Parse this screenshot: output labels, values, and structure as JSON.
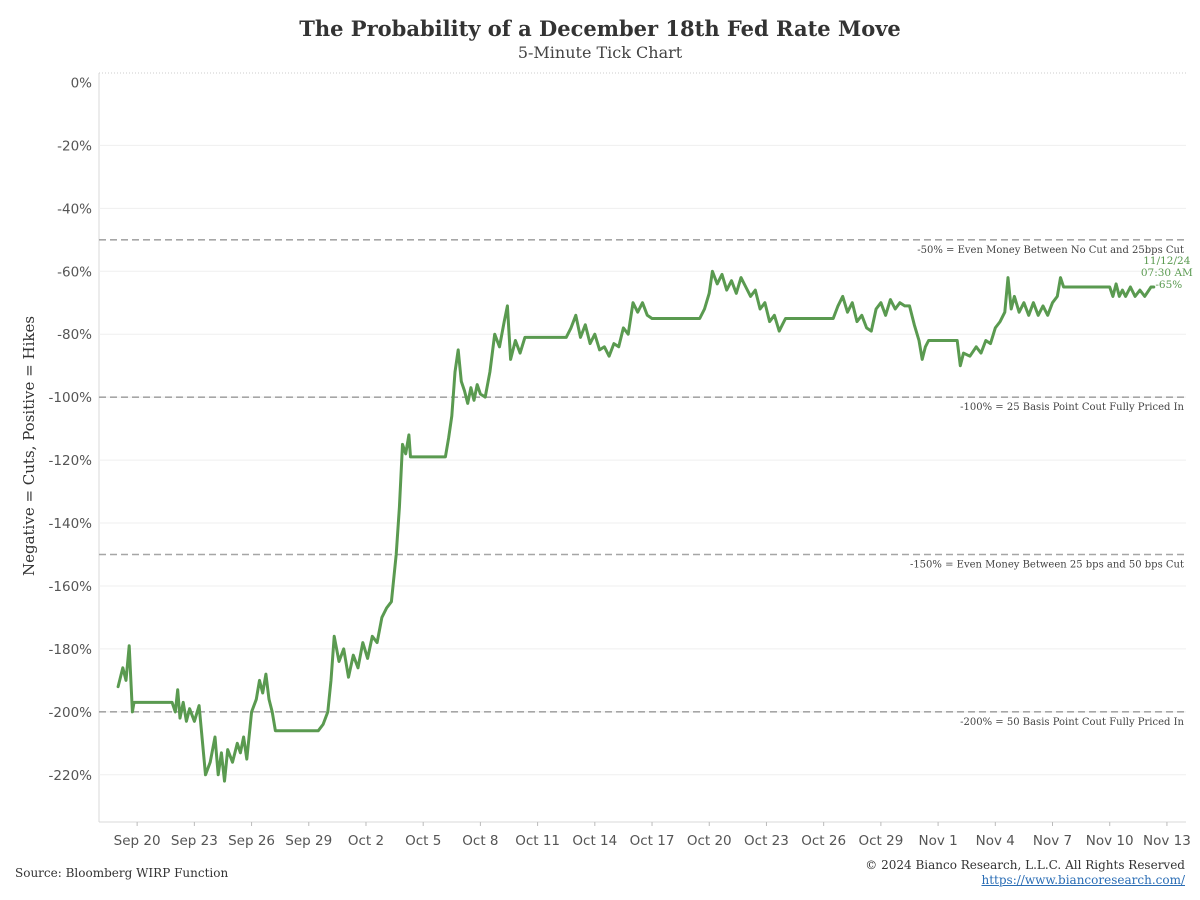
{
  "header": {
    "title": "The Probability of a December 18th Fed Rate Move",
    "subtitle": "5-Minute Tick Chart"
  },
  "footer": {
    "source": "Source: Bloomberg WIRP Function",
    "copyright": "© 2024 Bianco Research, L.L.C. All Rights Reserved",
    "url": "https://www.biancoresearch.com/"
  },
  "chart_data": {
    "type": "line",
    "ylabel": "Negative = Cuts, Positive = Hikes",
    "xlabel": "",
    "ylim": [
      -235,
      3
    ],
    "y_ticks": [
      0,
      -20,
      -40,
      -60,
      -80,
      -100,
      -120,
      -140,
      -160,
      -180,
      -200,
      -220
    ],
    "y_tick_format": "percent",
    "x_domain_days": [
      "2024-09-18",
      "2024-11-14"
    ],
    "x_ticks": [
      {
        "date": "2024-09-20",
        "label": "Sep 20"
      },
      {
        "date": "2024-09-23",
        "label": "Sep 23"
      },
      {
        "date": "2024-09-26",
        "label": "Sep 26"
      },
      {
        "date": "2024-09-29",
        "label": "Sep 29"
      },
      {
        "date": "2024-10-02",
        "label": "Oct 2"
      },
      {
        "date": "2024-10-05",
        "label": "Oct 5"
      },
      {
        "date": "2024-10-08",
        "label": "Oct 8"
      },
      {
        "date": "2024-10-11",
        "label": "Oct 11"
      },
      {
        "date": "2024-10-14",
        "label": "Oct 14"
      },
      {
        "date": "2024-10-17",
        "label": "Oct 17"
      },
      {
        "date": "2024-10-20",
        "label": "Oct 20"
      },
      {
        "date": "2024-10-23",
        "label": "Oct 23"
      },
      {
        "date": "2024-10-26",
        "label": "Oct 26"
      },
      {
        "date": "2024-10-29",
        "label": "Oct 29"
      },
      {
        "date": "2024-11-01",
        "label": "Nov 1"
      },
      {
        "date": "2024-11-04",
        "label": "Nov 4"
      },
      {
        "date": "2024-11-07",
        "label": "Nov 7"
      },
      {
        "date": "2024-11-10",
        "label": "Nov 10"
      },
      {
        "date": "2024-11-13",
        "label": "Nov 13"
      }
    ],
    "grid": true,
    "reference_lines": [
      {
        "y": -50,
        "label": "-50% = Even Money Between No Cut and 25bps Cut"
      },
      {
        "y": -100,
        "label": "-100% = 25 Basis Point Cout Fully Priced In"
      },
      {
        "y": -150,
        "label": "-150% = Even Money Between 25 bps and 50 bps Cut"
      },
      {
        "y": -200,
        "label": "-200% = 50 Basis Point Cout Fully Priced In"
      }
    ],
    "last_point": {
      "date_label": "11/12/24",
      "time_label": "07:30 AM",
      "value_label": "-65%",
      "value": -65
    },
    "line_color": "#5a9a50",
    "series": [
      {
        "points": [
          [
            "2024-09-19 00:00",
            -192
          ],
          [
            "2024-09-19 06:00",
            -186
          ],
          [
            "2024-09-19 10:00",
            -190
          ],
          [
            "2024-09-19 14:00",
            -179
          ],
          [
            "2024-09-19 18:00",
            -200
          ],
          [
            "2024-09-19 20:00",
            -197
          ],
          [
            "2024-09-21 20:00",
            -197
          ],
          [
            "2024-09-22 00:00",
            -200
          ],
          [
            "2024-09-22 03:00",
            -193
          ],
          [
            "2024-09-22 06:00",
            -202
          ],
          [
            "2024-09-22 10:00",
            -197
          ],
          [
            "2024-09-22 14:00",
            -203
          ],
          [
            "2024-09-22 18:00",
            -199
          ],
          [
            "2024-09-23 00:00",
            -203
          ],
          [
            "2024-09-23 06:00",
            -198
          ],
          [
            "2024-09-23 10:00",
            -209
          ],
          [
            "2024-09-23 14:00",
            -220
          ],
          [
            "2024-09-23 20:00",
            -216
          ],
          [
            "2024-09-24 02:00",
            -208
          ],
          [
            "2024-09-24 06:00",
            -220
          ],
          [
            "2024-09-24 10:00",
            -213
          ],
          [
            "2024-09-24 14:00",
            -222
          ],
          [
            "2024-09-24 18:00",
            -212
          ],
          [
            "2024-09-25 00:00",
            -216
          ],
          [
            "2024-09-25 06:00",
            -210
          ],
          [
            "2024-09-25 10:00",
            -213
          ],
          [
            "2024-09-25 14:00",
            -208
          ],
          [
            "2024-09-25 18:00",
            -215
          ],
          [
            "2024-09-26 00:00",
            -200
          ],
          [
            "2024-09-26 06:00",
            -196
          ],
          [
            "2024-09-26 10:00",
            -190
          ],
          [
            "2024-09-26 14:00",
            -194
          ],
          [
            "2024-09-26 18:00",
            -188
          ],
          [
            "2024-09-26 22:00",
            -196
          ],
          [
            "2024-09-27 02:00",
            -200
          ],
          [
            "2024-09-27 06:00",
            -206
          ],
          [
            "2024-09-28 06:00",
            -206
          ],
          [
            "2024-09-28 12:00",
            -206
          ],
          [
            "2024-09-29 12:00",
            -206
          ],
          [
            "2024-09-29 18:00",
            -204
          ],
          [
            "2024-09-30 00:00",
            -200
          ],
          [
            "2024-09-30 04:00",
            -190
          ],
          [
            "2024-09-30 08:00",
            -176
          ],
          [
            "2024-09-30 14:00",
            -184
          ],
          [
            "2024-09-30 20:00",
            -180
          ],
          [
            "2024-10-01 02:00",
            -189
          ],
          [
            "2024-10-01 08:00",
            -182
          ],
          [
            "2024-10-01 14:00",
            -186
          ],
          [
            "2024-10-01 20:00",
            -178
          ],
          [
            "2024-10-02 02:00",
            -183
          ],
          [
            "2024-10-02 08:00",
            -176
          ],
          [
            "2024-10-02 14:00",
            -178
          ],
          [
            "2024-10-02 20:00",
            -170
          ],
          [
            "2024-10-03 02:00",
            -167
          ],
          [
            "2024-10-03 08:00",
            -165
          ],
          [
            "2024-10-03 10:00",
            -160
          ],
          [
            "2024-10-03 14:00",
            -150
          ],
          [
            "2024-10-03 18:00",
            -135
          ],
          [
            "2024-10-03 22:00",
            -115
          ],
          [
            "2024-10-04 02:00",
            -118
          ],
          [
            "2024-10-04 06:00",
            -112
          ],
          [
            "2024-10-04 08:00",
            -119
          ],
          [
            "2024-10-05 12:00",
            -119
          ],
          [
            "2024-10-06 04:00",
            -119
          ],
          [
            "2024-10-06 08:00",
            -113
          ],
          [
            "2024-10-06 12:00",
            -106
          ],
          [
            "2024-10-06 16:00",
            -92
          ],
          [
            "2024-10-06 20:00",
            -85
          ],
          [
            "2024-10-07 00:00",
            -95
          ],
          [
            "2024-10-07 04:00",
            -98
          ],
          [
            "2024-10-07 08:00",
            -102
          ],
          [
            "2024-10-07 12:00",
            -97
          ],
          [
            "2024-10-07 16:00",
            -101
          ],
          [
            "2024-10-07 20:00",
            -96
          ],
          [
            "2024-10-08 00:00",
            -99
          ],
          [
            "2024-10-08 06:00",
            -100
          ],
          [
            "2024-10-08 12:00",
            -92
          ],
          [
            "2024-10-08 18:00",
            -80
          ],
          [
            "2024-10-09 00:00",
            -84
          ],
          [
            "2024-10-09 06:00",
            -76
          ],
          [
            "2024-10-09 10:00",
            -71
          ],
          [
            "2024-10-09 14:00",
            -88
          ],
          [
            "2024-10-09 20:00",
            -82
          ],
          [
            "2024-10-10 02:00",
            -86
          ],
          [
            "2024-10-10 08:00",
            -81
          ],
          [
            "2024-10-10 12:00",
            -81
          ],
          [
            "2024-10-12 06:00",
            -81
          ],
          [
            "2024-10-12 12:00",
            -81
          ],
          [
            "2024-10-12 18:00",
            -78
          ],
          [
            "2024-10-13 00:00",
            -74
          ],
          [
            "2024-10-13 06:00",
            -81
          ],
          [
            "2024-10-13 12:00",
            -77
          ],
          [
            "2024-10-13 18:00",
            -83
          ],
          [
            "2024-10-14 00:00",
            -80
          ],
          [
            "2024-10-14 06:00",
            -85
          ],
          [
            "2024-10-14 12:00",
            -84
          ],
          [
            "2024-10-14 18:00",
            -87
          ],
          [
            "2024-10-15 00:00",
            -83
          ],
          [
            "2024-10-15 06:00",
            -84
          ],
          [
            "2024-10-15 12:00",
            -78
          ],
          [
            "2024-10-15 18:00",
            -80
          ],
          [
            "2024-10-16 00:00",
            -70
          ],
          [
            "2024-10-16 06:00",
            -73
          ],
          [
            "2024-10-16 12:00",
            -70
          ],
          [
            "2024-10-16 18:00",
            -74
          ],
          [
            "2024-10-17 00:00",
            -75
          ],
          [
            "2024-10-17 06:00",
            -75
          ],
          [
            "2024-10-18 18:00",
            -75
          ],
          [
            "2024-10-19 00:00",
            -75
          ],
          [
            "2024-10-19 12:00",
            -75
          ],
          [
            "2024-10-19 18:00",
            -72
          ],
          [
            "2024-10-20 00:00",
            -67
          ],
          [
            "2024-10-20 04:00",
            -60
          ],
          [
            "2024-10-20 10:00",
            -64
          ],
          [
            "2024-10-20 16:00",
            -61
          ],
          [
            "2024-10-20 22:00",
            -66
          ],
          [
            "2024-10-21 04:00",
            -63
          ],
          [
            "2024-10-21 10:00",
            -67
          ],
          [
            "2024-10-21 16:00",
            -62
          ],
          [
            "2024-10-21 22:00",
            -65
          ],
          [
            "2024-10-22 04:00",
            -68
          ],
          [
            "2024-10-22 10:00",
            -66
          ],
          [
            "2024-10-22 16:00",
            -72
          ],
          [
            "2024-10-22 22:00",
            -70
          ],
          [
            "2024-10-23 04:00",
            -76
          ],
          [
            "2024-10-23 10:00",
            -74
          ],
          [
            "2024-10-23 16:00",
            -79
          ],
          [
            "2024-10-23 20:00",
            -77
          ],
          [
            "2024-10-24 00:00",
            -75
          ],
          [
            "2024-10-25 06:00",
            -75
          ],
          [
            "2024-10-25 12:00",
            -75
          ],
          [
            "2024-10-26 06:00",
            -75
          ],
          [
            "2024-10-26 12:00",
            -75
          ],
          [
            "2024-10-26 18:00",
            -71
          ],
          [
            "2024-10-27 00:00",
            -68
          ],
          [
            "2024-10-27 06:00",
            -73
          ],
          [
            "2024-10-27 12:00",
            -70
          ],
          [
            "2024-10-27 18:00",
            -76
          ],
          [
            "2024-10-28 00:00",
            -74
          ],
          [
            "2024-10-28 06:00",
            -78
          ],
          [
            "2024-10-28 12:00",
            -79
          ],
          [
            "2024-10-28 18:00",
            -72
          ],
          [
            "2024-10-29 00:00",
            -70
          ],
          [
            "2024-10-29 06:00",
            -74
          ],
          [
            "2024-10-29 12:00",
            -69
          ],
          [
            "2024-10-29 18:00",
            -72
          ],
          [
            "2024-10-30 00:00",
            -70
          ],
          [
            "2024-10-30 06:00",
            -71
          ],
          [
            "2024-10-30 12:00",
            -71
          ],
          [
            "2024-10-30 18:00",
            -77
          ],
          [
            "2024-10-31 00:00",
            -82
          ],
          [
            "2024-10-31 04:00",
            -88
          ],
          [
            "2024-10-31 08:00",
            -84
          ],
          [
            "2024-10-31 12:00",
            -82
          ],
          [
            "2024-11-01 06:00",
            -82
          ],
          [
            "2024-11-01 12:00",
            -82
          ],
          [
            "2024-11-02 00:00",
            -82
          ],
          [
            "2024-11-02 04:00",
            -90
          ],
          [
            "2024-11-02 08:00",
            -86
          ],
          [
            "2024-11-02 16:00",
            -87
          ],
          [
            "2024-11-03 00:00",
            -84
          ],
          [
            "2024-11-03 06:00",
            -86
          ],
          [
            "2024-11-03 12:00",
            -82
          ],
          [
            "2024-11-03 18:00",
            -83
          ],
          [
            "2024-11-04 00:00",
            -78
          ],
          [
            "2024-11-04 06:00",
            -76
          ],
          [
            "2024-11-04 12:00",
            -73
          ],
          [
            "2024-11-04 16:00",
            -62
          ],
          [
            "2024-11-04 20:00",
            -72
          ],
          [
            "2024-11-05 00:00",
            -68
          ],
          [
            "2024-11-05 06:00",
            -73
          ],
          [
            "2024-11-05 12:00",
            -70
          ],
          [
            "2024-11-05 18:00",
            -74
          ],
          [
            "2024-11-06 00:00",
            -70
          ],
          [
            "2024-11-06 06:00",
            -74
          ],
          [
            "2024-11-06 12:00",
            -71
          ],
          [
            "2024-11-06 18:00",
            -74
          ],
          [
            "2024-11-07 00:00",
            -70
          ],
          [
            "2024-11-07 06:00",
            -68
          ],
          [
            "2024-11-07 10:00",
            -62
          ],
          [
            "2024-11-07 14:00",
            -65
          ],
          [
            "2024-11-08 12:00",
            -65
          ],
          [
            "2024-11-09 12:00",
            -65
          ],
          [
            "2024-11-10 00:00",
            -65
          ],
          [
            "2024-11-10 04:00",
            -68
          ],
          [
            "2024-11-10 08:00",
            -64
          ],
          [
            "2024-11-10 12:00",
            -68
          ],
          [
            "2024-11-10 16:00",
            -66
          ],
          [
            "2024-11-10 20:00",
            -68
          ],
          [
            "2024-11-11 02:00",
            -65
          ],
          [
            "2024-11-11 08:00",
            -68
          ],
          [
            "2024-11-11 14:00",
            -66
          ],
          [
            "2024-11-11 20:00",
            -68
          ],
          [
            "2024-11-12 04:00",
            -65
          ],
          [
            "2024-11-12 07:30",
            -65
          ]
        ]
      }
    ]
  }
}
